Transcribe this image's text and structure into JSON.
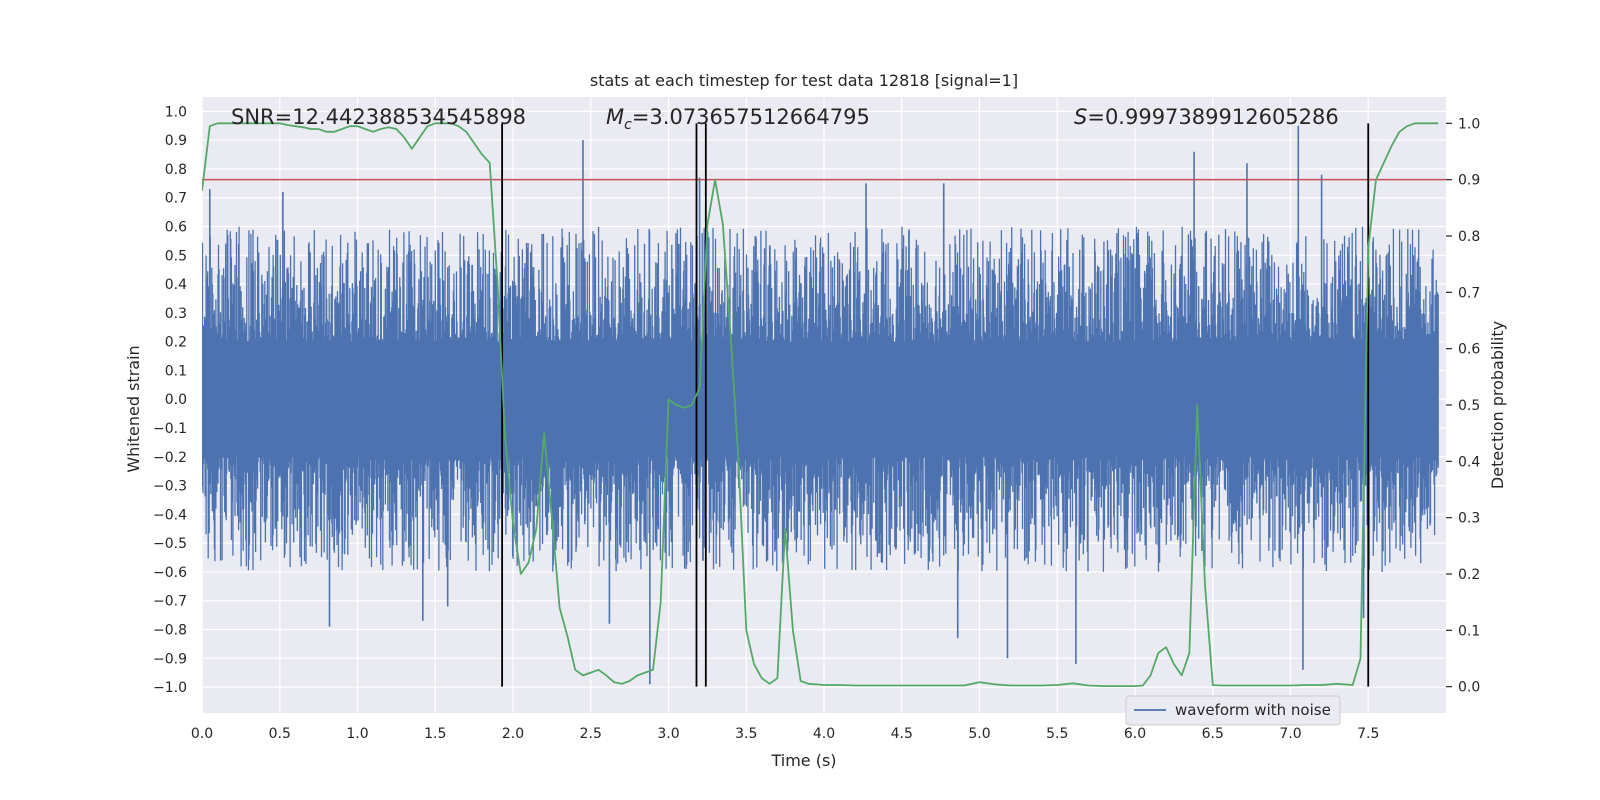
{
  "chart_data": {
    "type": "line",
    "title": "stats at each timestep for test data 12818 [signal=1]",
    "xlabel": "Time (s)",
    "ylabel": "Whitened strain",
    "y2label": "Detection probability",
    "xlim": [
      0.0,
      8.0
    ],
    "ylim": [
      -1.09,
      1.05
    ],
    "y2lim": [
      -0.04675,
      1.04675
    ],
    "x_ticks": [
      "0.0",
      "0.5",
      "1.0",
      "1.5",
      "2.0",
      "2.5",
      "3.0",
      "3.5",
      "4.0",
      "4.5",
      "5.0",
      "5.5",
      "6.0",
      "6.5",
      "7.0",
      "7.5"
    ],
    "y_ticks": [
      "1.0",
      "0.9",
      "0.8",
      "0.7",
      "0.6",
      "0.5",
      "0.4",
      "0.3",
      "0.2",
      "0.1",
      "0.0",
      "−0.1",
      "−0.2",
      "−0.3",
      "−0.4",
      "−0.5",
      "−0.6",
      "−0.7",
      "−0.8",
      "−0.9",
      "−1.0"
    ],
    "y2_ticks": [
      "1.0",
      "0.9",
      "0.8",
      "0.7",
      "0.6",
      "0.5",
      "0.4",
      "0.3",
      "0.2",
      "0.1",
      "0.0"
    ],
    "annotations": {
      "snr": "SNR=12.442388534545898",
      "mc_symbol": "M",
      "mc_sub": "c",
      "mc_value": "=3.073657512664795",
      "s_symbol": "S",
      "s_value": "=0.9997389912605286"
    },
    "legend": {
      "label": "waveform with noise",
      "position": "lower-right"
    },
    "colors": {
      "waveform": "#4c72b0",
      "probability": "#55a868",
      "threshold": "#c44e52",
      "markers": "#000000",
      "background": "#eaeaf2",
      "grid": "#ffffff"
    },
    "threshold": 0.9,
    "event_markers": [
      1.93,
      3.18,
      3.24,
      7.5
    ],
    "waveform_amplitude": {
      "core": 0.2,
      "typical_max": 0.55,
      "peak_max": 0.95,
      "peak_min": -0.99
    },
    "series": [
      {
        "name": "detection probability",
        "axis": "y2",
        "x": [
          0.0,
          0.05,
          0.1,
          0.15,
          0.2,
          0.25,
          0.3,
          0.35,
          0.4,
          0.45,
          0.5,
          0.55,
          0.6,
          0.65,
          0.7,
          0.75,
          0.8,
          0.85,
          0.9,
          0.95,
          1.0,
          1.05,
          1.1,
          1.15,
          1.2,
          1.25,
          1.3,
          1.35,
          1.4,
          1.45,
          1.5,
          1.55,
          1.6,
          1.65,
          1.7,
          1.75,
          1.8,
          1.85,
          1.9,
          1.95,
          2.0,
          2.05,
          2.1,
          2.15,
          2.2,
          2.25,
          2.3,
          2.35,
          2.4,
          2.45,
          2.5,
          2.55,
          2.6,
          2.65,
          2.7,
          2.75,
          2.8,
          2.85,
          2.9,
          2.95,
          3.0,
          3.05,
          3.1,
          3.15,
          3.2,
          3.25,
          3.3,
          3.35,
          3.4,
          3.45,
          3.5,
          3.55,
          3.6,
          3.65,
          3.7,
          3.75,
          3.8,
          3.85,
          3.9,
          3.95,
          4.0,
          4.1,
          4.2,
          4.3,
          4.4,
          4.5,
          4.6,
          4.7,
          4.8,
          4.9,
          5.0,
          5.1,
          5.2,
          5.3,
          5.4,
          5.5,
          5.6,
          5.7,
          5.8,
          5.9,
          6.0,
          6.05,
          6.1,
          6.15,
          6.2,
          6.25,
          6.3,
          6.35,
          6.4,
          6.45,
          6.5,
          6.55,
          6.6,
          6.7,
          6.8,
          6.9,
          7.0,
          7.1,
          7.2,
          7.3,
          7.4,
          7.45,
          7.5,
          7.55,
          7.6,
          7.65,
          7.7,
          7.75,
          7.8,
          7.85,
          7.9,
          7.95
        ],
        "values": [
          0.88,
          0.995,
          1.0,
          1.0,
          1.0,
          1.0,
          1.0,
          1.0,
          1.0,
          1.0,
          1.0,
          0.997,
          0.995,
          0.993,
          0.99,
          0.99,
          0.985,
          0.985,
          0.99,
          0.995,
          0.995,
          0.99,
          0.985,
          0.99,
          0.993,
          0.99,
          0.975,
          0.955,
          0.975,
          0.995,
          1.0,
          1.0,
          1.0,
          0.995,
          0.985,
          0.965,
          0.945,
          0.93,
          0.72,
          0.44,
          0.29,
          0.2,
          0.22,
          0.28,
          0.45,
          0.3,
          0.14,
          0.09,
          0.03,
          0.02,
          0.025,
          0.03,
          0.02,
          0.008,
          0.005,
          0.01,
          0.02,
          0.025,
          0.03,
          0.15,
          0.51,
          0.5,
          0.495,
          0.5,
          0.53,
          0.82,
          0.9,
          0.82,
          0.62,
          0.4,
          0.1,
          0.04,
          0.015,
          0.005,
          0.015,
          0.28,
          0.1,
          0.01,
          0.005,
          0.004,
          0.003,
          0.003,
          0.002,
          0.002,
          0.002,
          0.002,
          0.002,
          0.002,
          0.002,
          0.002,
          0.008,
          0.004,
          0.002,
          0.002,
          0.002,
          0.003,
          0.006,
          0.002,
          0.001,
          0.001,
          0.001,
          0.002,
          0.02,
          0.06,
          0.07,
          0.04,
          0.02,
          0.06,
          0.5,
          0.18,
          0.003,
          0.002,
          0.002,
          0.002,
          0.002,
          0.002,
          0.002,
          0.003,
          0.003,
          0.005,
          0.003,
          0.05,
          0.78,
          0.9,
          0.93,
          0.96,
          0.985,
          0.995,
          1.0,
          1.0,
          1.0,
          1.0
        ]
      },
      {
        "name": "waveform with noise",
        "axis": "y",
        "spikes": [
          {
            "x": 0.05,
            "value": 0.73
          },
          {
            "x": 0.52,
            "value": 0.72
          },
          {
            "x": 0.82,
            "value": -0.79
          },
          {
            "x": 1.42,
            "value": -0.77
          },
          {
            "x": 1.58,
            "value": -0.72
          },
          {
            "x": 2.45,
            "value": 0.9
          },
          {
            "x": 2.62,
            "value": -0.78
          },
          {
            "x": 2.88,
            "value": -0.99
          },
          {
            "x": 3.2,
            "value": 0.77
          },
          {
            "x": 4.27,
            "value": 0.75
          },
          {
            "x": 4.77,
            "value": 0.75
          },
          {
            "x": 4.86,
            "value": -0.83
          },
          {
            "x": 5.18,
            "value": -0.9
          },
          {
            "x": 5.62,
            "value": -0.92
          },
          {
            "x": 6.38,
            "value": 0.86
          },
          {
            "x": 6.72,
            "value": 0.82
          },
          {
            "x": 7.05,
            "value": 0.95
          },
          {
            "x": 7.08,
            "value": -0.94
          },
          {
            "x": 7.2,
            "value": 0.78
          },
          {
            "x": 7.47,
            "value": -0.76
          }
        ]
      }
    ]
  }
}
